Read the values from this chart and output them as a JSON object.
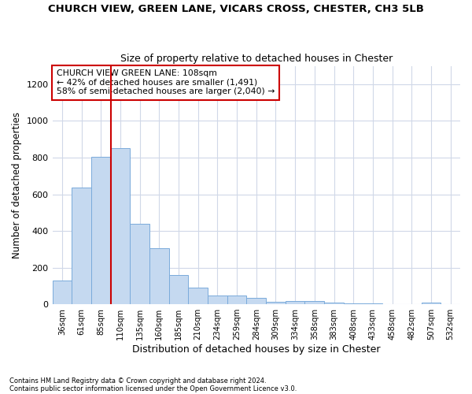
{
  "title": "CHURCH VIEW, GREEN LANE, VICARS CROSS, CHESTER, CH3 5LB",
  "subtitle": "Size of property relative to detached houses in Chester",
  "xlabel": "Distribution of detached houses by size in Chester",
  "ylabel": "Number of detached properties",
  "footnote1": "Contains HM Land Registry data © Crown copyright and database right 2024.",
  "footnote2": "Contains public sector information licensed under the Open Government Licence v3.0.",
  "bar_labels": [
    "36sqm",
    "61sqm",
    "85sqm",
    "110sqm",
    "135sqm",
    "160sqm",
    "185sqm",
    "210sqm",
    "234sqm",
    "259sqm",
    "284sqm",
    "309sqm",
    "334sqm",
    "358sqm",
    "383sqm",
    "408sqm",
    "433sqm",
    "458sqm",
    "482sqm",
    "507sqm",
    "532sqm"
  ],
  "bar_values": [
    130,
    635,
    805,
    850,
    440,
    305,
    158,
    93,
    50,
    48,
    35,
    15,
    20,
    18,
    10,
    7,
    5,
    3,
    2,
    10,
    2
  ],
  "bar_color": "#c5d9f0",
  "bar_edge_color": "#7aabdb",
  "vline_x": 2.5,
  "vline_color": "#cc0000",
  "ylim": [
    0,
    1300
  ],
  "yticks": [
    0,
    200,
    400,
    600,
    800,
    1000,
    1200
  ],
  "annotation_title": "CHURCH VIEW GREEN LANE: 108sqm",
  "annotation_line1": "← 42% of detached houses are smaller (1,491)",
  "annotation_line2": "58% of semi-detached houses are larger (2,040) →",
  "annotation_box_color": "#ffffff",
  "annotation_box_edge": "#cc0000",
  "grid_color": "#d0d8e8",
  "background_color": "#ffffff"
}
